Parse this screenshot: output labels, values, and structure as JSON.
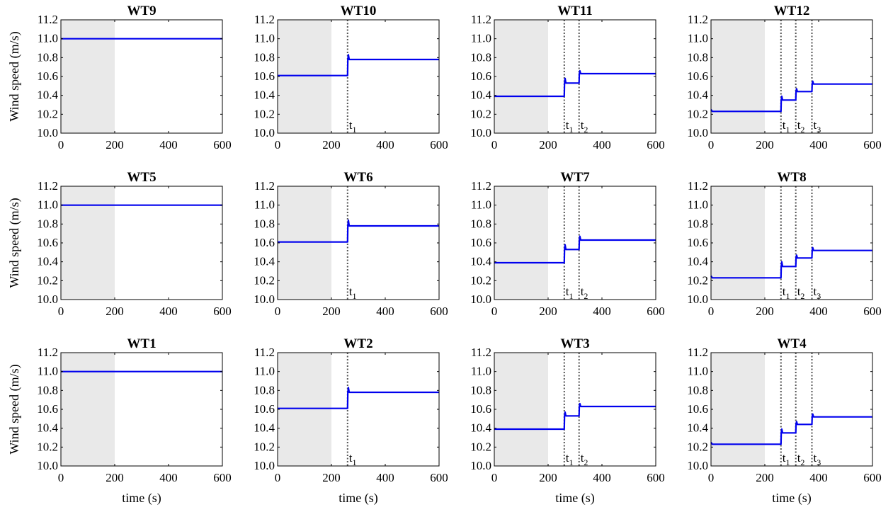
{
  "figure": {
    "xlabel": "time (s)",
    "ylabel": "Wind speed (m/s)"
  },
  "chart_data": [
    {
      "type": "line",
      "title": "WT9",
      "xlim": [
        0,
        600
      ],
      "ylim": [
        10.0,
        11.2
      ],
      "xticks": [
        "0",
        "200",
        "400",
        "600"
      ],
      "yticks": [
        "10.0",
        "10.2",
        "10.4",
        "10.6",
        "10.8",
        "11.0",
        "11.2"
      ],
      "shade": [
        0,
        200
      ],
      "series": [
        {
          "points": [
            [
              0,
              11.0
            ],
            [
              600,
              11.0
            ]
          ]
        }
      ],
      "events": []
    },
    {
      "type": "line",
      "title": "WT10",
      "xlim": [
        0,
        600
      ],
      "ylim": [
        10.0,
        11.2
      ],
      "xticks": [
        "0",
        "200",
        "400",
        "600"
      ],
      "yticks": [
        "10.0",
        "10.2",
        "10.4",
        "10.6",
        "10.8",
        "11.0",
        "11.2"
      ],
      "shade": [
        0,
        200
      ],
      "series": [
        {
          "points": [
            [
              0,
              10.61
            ],
            [
              260,
              10.61
            ],
            [
              261,
              10.78
            ],
            [
              263,
              10.83
            ],
            [
              266,
              10.78
            ],
            [
              600,
              10.78
            ]
          ]
        }
      ],
      "events": [
        {
          "x": 260,
          "label": "t",
          "sub": "1"
        }
      ]
    },
    {
      "type": "line",
      "title": "WT11",
      "xlim": [
        0,
        600
      ],
      "ylim": [
        10.0,
        11.2
      ],
      "xticks": [
        "0",
        "200",
        "400",
        "600"
      ],
      "yticks": [
        "10.0",
        "10.2",
        "10.4",
        "10.6",
        "10.8",
        "11.0",
        "11.2"
      ],
      "shade": [
        0,
        200
      ],
      "series": [
        {
          "points": [
            [
              0,
              10.39
            ],
            [
              260,
              10.39
            ],
            [
              261,
              10.53
            ],
            [
              263,
              10.58
            ],
            [
              266,
              10.53
            ],
            [
              315,
              10.53
            ],
            [
              316,
              10.63
            ],
            [
              318,
              10.66
            ],
            [
              321,
              10.63
            ],
            [
              600,
              10.63
            ]
          ]
        }
      ],
      "events": [
        {
          "x": 260,
          "label": "t",
          "sub": "1"
        },
        {
          "x": 315,
          "label": "t",
          "sub": "2"
        }
      ]
    },
    {
      "type": "line",
      "title": "WT12",
      "xlim": [
        0,
        600
      ],
      "ylim": [
        10.0,
        11.2
      ],
      "xticks": [
        "0",
        "200",
        "400",
        "600"
      ],
      "yticks": [
        "10.0",
        "10.2",
        "10.4",
        "10.6",
        "10.8",
        "11.0",
        "11.2"
      ],
      "shade": [
        0,
        200
      ],
      "series": [
        {
          "points": [
            [
              0,
              10.25
            ],
            [
              5,
              10.23
            ],
            [
              20,
              10.23
            ],
            [
              260,
              10.23
            ],
            [
              261,
              10.35
            ],
            [
              263,
              10.39
            ],
            [
              266,
              10.35
            ],
            [
              315,
              10.35
            ],
            [
              316,
              10.44
            ],
            [
              318,
              10.47
            ],
            [
              321,
              10.44
            ],
            [
              375,
              10.44
            ],
            [
              376,
              10.52
            ],
            [
              378,
              10.55
            ],
            [
              381,
              10.52
            ],
            [
              600,
              10.52
            ]
          ]
        }
      ],
      "events": [
        {
          "x": 260,
          "label": "t",
          "sub": "1"
        },
        {
          "x": 315,
          "label": "t",
          "sub": "2"
        },
        {
          "x": 375,
          "label": "t",
          "sub": "3"
        }
      ]
    },
    {
      "type": "line",
      "title": "WT5",
      "xlim": [
        0,
        600
      ],
      "ylim": [
        10.0,
        11.2
      ],
      "xticks": [
        "0",
        "200",
        "400",
        "600"
      ],
      "yticks": [
        "10.0",
        "10.2",
        "10.4",
        "10.6",
        "10.8",
        "11.0",
        "11.2"
      ],
      "shade": [
        0,
        200
      ],
      "series": [
        {
          "points": [
            [
              0,
              11.0
            ],
            [
              600,
              11.0
            ]
          ]
        }
      ],
      "events": []
    },
    {
      "type": "line",
      "title": "WT6",
      "xlim": [
        0,
        600
      ],
      "ylim": [
        10.0,
        11.2
      ],
      "xticks": [
        "0",
        "200",
        "400",
        "600"
      ],
      "yticks": [
        "10.0",
        "10.2",
        "10.4",
        "10.6",
        "10.8",
        "11.0",
        "11.2"
      ],
      "shade": [
        0,
        200
      ],
      "series": [
        {
          "points": [
            [
              0,
              10.61
            ],
            [
              260,
              10.61
            ],
            [
              261,
              10.78
            ],
            [
              263,
              10.84
            ],
            [
              266,
              10.78
            ],
            [
              600,
              10.78
            ]
          ]
        }
      ],
      "events": [
        {
          "x": 260,
          "label": "t",
          "sub": "1"
        }
      ]
    },
    {
      "type": "line",
      "title": "WT7",
      "xlim": [
        0,
        600
      ],
      "ylim": [
        10.0,
        11.2
      ],
      "xticks": [
        "0",
        "200",
        "400",
        "600"
      ],
      "yticks": [
        "10.0",
        "10.2",
        "10.4",
        "10.6",
        "10.8",
        "11.0",
        "11.2"
      ],
      "shade": [
        0,
        200
      ],
      "series": [
        {
          "points": [
            [
              0,
              10.39
            ],
            [
              260,
              10.39
            ],
            [
              261,
              10.53
            ],
            [
              263,
              10.58
            ],
            [
              266,
              10.53
            ],
            [
              315,
              10.53
            ],
            [
              316,
              10.63
            ],
            [
              318,
              10.67
            ],
            [
              321,
              10.63
            ],
            [
              600,
              10.63
            ]
          ]
        }
      ],
      "events": [
        {
          "x": 260,
          "label": "t",
          "sub": "1"
        },
        {
          "x": 315,
          "label": "t",
          "sub": "2"
        }
      ]
    },
    {
      "type": "line",
      "title": "WT8",
      "xlim": [
        0,
        600
      ],
      "ylim": [
        10.0,
        11.2
      ],
      "xticks": [
        "0",
        "200",
        "400",
        "600"
      ],
      "yticks": [
        "10.0",
        "10.2",
        "10.4",
        "10.6",
        "10.8",
        "11.0",
        "11.2"
      ],
      "shade": [
        0,
        200
      ],
      "series": [
        {
          "points": [
            [
              0,
              10.25
            ],
            [
              5,
              10.23
            ],
            [
              20,
              10.23
            ],
            [
              260,
              10.23
            ],
            [
              261,
              10.35
            ],
            [
              263,
              10.4
            ],
            [
              266,
              10.35
            ],
            [
              315,
              10.35
            ],
            [
              316,
              10.44
            ],
            [
              318,
              10.47
            ],
            [
              321,
              10.44
            ],
            [
              375,
              10.44
            ],
            [
              376,
              10.52
            ],
            [
              378,
              10.55
            ],
            [
              381,
              10.52
            ],
            [
              600,
              10.52
            ]
          ]
        }
      ],
      "events": [
        {
          "x": 260,
          "label": "t",
          "sub": "1"
        },
        {
          "x": 315,
          "label": "t",
          "sub": "2"
        },
        {
          "x": 375,
          "label": "t",
          "sub": "3"
        }
      ]
    },
    {
      "type": "line",
      "title": "WT1",
      "xlim": [
        0,
        600
      ],
      "ylim": [
        10.0,
        11.2
      ],
      "xticks": [
        "0",
        "200",
        "400",
        "600"
      ],
      "yticks": [
        "10.0",
        "10.2",
        "10.4",
        "10.6",
        "10.8",
        "11.0",
        "11.2"
      ],
      "shade": [
        0,
        200
      ],
      "series": [
        {
          "points": [
            [
              0,
              11.0
            ],
            [
              600,
              11.0
            ]
          ]
        }
      ],
      "events": []
    },
    {
      "type": "line",
      "title": "WT2",
      "xlim": [
        0,
        600
      ],
      "ylim": [
        10.0,
        11.2
      ],
      "xticks": [
        "0",
        "200",
        "400",
        "600"
      ],
      "yticks": [
        "10.0",
        "10.2",
        "10.4",
        "10.6",
        "10.8",
        "11.0",
        "11.2"
      ],
      "shade": [
        0,
        200
      ],
      "series": [
        {
          "points": [
            [
              0,
              10.61
            ],
            [
              260,
              10.61
            ],
            [
              261,
              10.78
            ],
            [
              263,
              10.83
            ],
            [
              266,
              10.78
            ],
            [
              600,
              10.78
            ]
          ]
        }
      ],
      "events": [
        {
          "x": 260,
          "label": "t",
          "sub": "1"
        }
      ]
    },
    {
      "type": "line",
      "title": "WT3",
      "xlim": [
        0,
        600
      ],
      "ylim": [
        10.0,
        11.2
      ],
      "xticks": [
        "0",
        "200",
        "400",
        "600"
      ],
      "yticks": [
        "10.0",
        "10.2",
        "10.4",
        "10.6",
        "10.8",
        "11.0",
        "11.2"
      ],
      "shade": [
        0,
        200
      ],
      "series": [
        {
          "points": [
            [
              0,
              10.39
            ],
            [
              260,
              10.39
            ],
            [
              261,
              10.53
            ],
            [
              263,
              10.57
            ],
            [
              266,
              10.53
            ],
            [
              315,
              10.53
            ],
            [
              316,
              10.63
            ],
            [
              318,
              10.66
            ],
            [
              321,
              10.63
            ],
            [
              600,
              10.63
            ]
          ]
        }
      ],
      "events": [
        {
          "x": 260,
          "label": "t",
          "sub": "1"
        },
        {
          "x": 315,
          "label": "t",
          "sub": "2"
        }
      ]
    },
    {
      "type": "line",
      "title": "WT4",
      "xlim": [
        0,
        600
      ],
      "ylim": [
        10.0,
        11.2
      ],
      "xticks": [
        "0",
        "200",
        "400",
        "600"
      ],
      "yticks": [
        "10.0",
        "10.2",
        "10.4",
        "10.6",
        "10.8",
        "11.0",
        "11.2"
      ],
      "shade": [
        0,
        200
      ],
      "series": [
        {
          "points": [
            [
              0,
              10.25
            ],
            [
              5,
              10.23
            ],
            [
              20,
              10.23
            ],
            [
              260,
              10.23
            ],
            [
              261,
              10.35
            ],
            [
              263,
              10.39
            ],
            [
              266,
              10.35
            ],
            [
              315,
              10.35
            ],
            [
              316,
              10.44
            ],
            [
              318,
              10.47
            ],
            [
              321,
              10.44
            ],
            [
              375,
              10.44
            ],
            [
              376,
              10.52
            ],
            [
              378,
              10.55
            ],
            [
              381,
              10.52
            ],
            [
              600,
              10.52
            ]
          ]
        }
      ],
      "events": [
        {
          "x": 260,
          "label": "t",
          "sub": "1"
        },
        {
          "x": 315,
          "label": "t",
          "sub": "2"
        },
        {
          "x": 375,
          "label": "t",
          "sub": "3"
        }
      ]
    }
  ],
  "colors": {
    "line": "#0000ee",
    "shade": "#e9e9e9",
    "event_line": "#555555",
    "axis": "#000000"
  }
}
